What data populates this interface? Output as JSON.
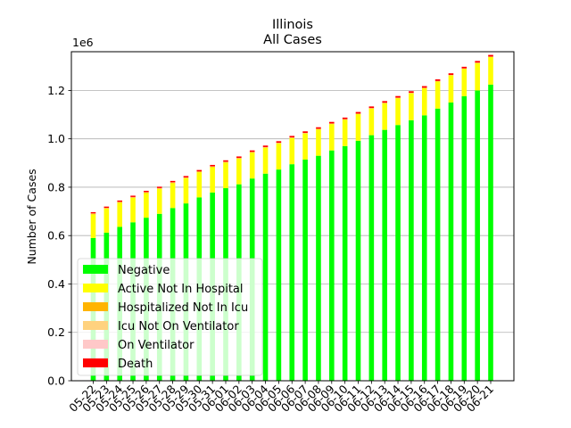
{
  "chart_data": {
    "type": "bar",
    "stacked": true,
    "title": "Illinois",
    "subtitle": "All Cases",
    "xlabel": "",
    "ylabel": "Number of Cases",
    "y_scale_label": "1e6",
    "ylim": [
      0,
      1.36
    ],
    "yticks": [
      "0.0",
      "0.2",
      "0.4",
      "0.6",
      "0.8",
      "1.0",
      "1.2"
    ],
    "grid": "horizontal",
    "legend_position": "lower-left",
    "categories": [
      "05-22",
      "05-23",
      "05-24",
      "05-25",
      "05-26",
      "05-27",
      "05-28",
      "05-29",
      "05-30",
      "05-31",
      "06-01",
      "06-02",
      "06-03",
      "06-04",
      "06-05",
      "06-06",
      "06-07",
      "06-08",
      "06-09",
      "06-10",
      "06-11",
      "06-12",
      "06-13",
      "06-14",
      "06-15",
      "06-16",
      "06-17",
      "06-18",
      "06-19",
      "06-20",
      "06-21"
    ],
    "series": [
      {
        "name": "Negative",
        "color": "#00ff00",
        "values": [
          0.59,
          0.612,
          0.636,
          0.655,
          0.674,
          0.69,
          0.714,
          0.733,
          0.758,
          0.778,
          0.796,
          0.812,
          0.836,
          0.856,
          0.873,
          0.895,
          0.914,
          0.93,
          0.952,
          0.97,
          0.992,
          1.015,
          1.037,
          1.057,
          1.077,
          1.097,
          1.125,
          1.15,
          1.176,
          1.2,
          1.224
        ]
      },
      {
        "name": "Active Not In Hospital",
        "color": "#ffff00",
        "values": [
          0.098,
          0.099,
          0.1,
          0.101,
          0.102,
          0.103,
          0.103,
          0.104,
          0.104,
          0.105,
          0.106,
          0.106,
          0.107,
          0.107,
          0.108,
          0.108,
          0.108,
          0.109,
          0.109,
          0.109,
          0.11,
          0.11,
          0.11,
          0.111,
          0.111,
          0.112,
          0.112,
          0.112,
          0.113,
          0.113,
          0.114
        ]
      },
      {
        "name": "Hospitalized Not In Icu",
        "color": "#ffb400",
        "values": [
          0.0028,
          0.0027,
          0.0027,
          0.0026,
          0.0026,
          0.0025,
          0.0024,
          0.0024,
          0.0023,
          0.0022,
          0.0022,
          0.0021,
          0.002,
          0.002,
          0.0019,
          0.0018,
          0.0018,
          0.0017,
          0.0017,
          0.0016,
          0.0016,
          0.0015,
          0.0015,
          0.0014,
          0.0014,
          0.0013,
          0.0013,
          0.0013,
          0.0012,
          0.0012,
          0.0012
        ]
      },
      {
        "name": "Icu Not On Ventilator",
        "color": "#ffd27f",
        "values": [
          0.0004,
          0.0004,
          0.0004,
          0.0004,
          0.0004,
          0.0004,
          0.0004,
          0.0004,
          0.0004,
          0.0004,
          0.0004,
          0.0004,
          0.0004,
          0.0004,
          0.0004,
          0.0004,
          0.0003,
          0.0003,
          0.0003,
          0.0003,
          0.0003,
          0.0003,
          0.0003,
          0.0003,
          0.0003,
          0.0003,
          0.0003,
          0.0003,
          0.0003,
          0.0003,
          0.0003
        ]
      },
      {
        "name": "On Ventilator",
        "color": "#ffc8c8",
        "values": [
          0.0006,
          0.0006,
          0.0006,
          0.0006,
          0.0006,
          0.0006,
          0.0005,
          0.0005,
          0.0005,
          0.0005,
          0.0005,
          0.0005,
          0.0005,
          0.0005,
          0.0005,
          0.0005,
          0.0004,
          0.0004,
          0.0004,
          0.0004,
          0.0004,
          0.0004,
          0.0004,
          0.0004,
          0.0004,
          0.0004,
          0.0004,
          0.0004,
          0.0004,
          0.0004,
          0.0004
        ]
      },
      {
        "name": "Death",
        "color": "#ff0000",
        "values": [
          0.0051,
          0.0052,
          0.0053,
          0.0054,
          0.0055,
          0.0056,
          0.0057,
          0.0058,
          0.0059,
          0.006,
          0.0061,
          0.0061,
          0.0062,
          0.0062,
          0.0063,
          0.0063,
          0.0064,
          0.0064,
          0.0065,
          0.0065,
          0.0066,
          0.0066,
          0.0067,
          0.0067,
          0.0067,
          0.0068,
          0.0068,
          0.0068,
          0.0069,
          0.0069,
          0.0069
        ]
      }
    ]
  }
}
